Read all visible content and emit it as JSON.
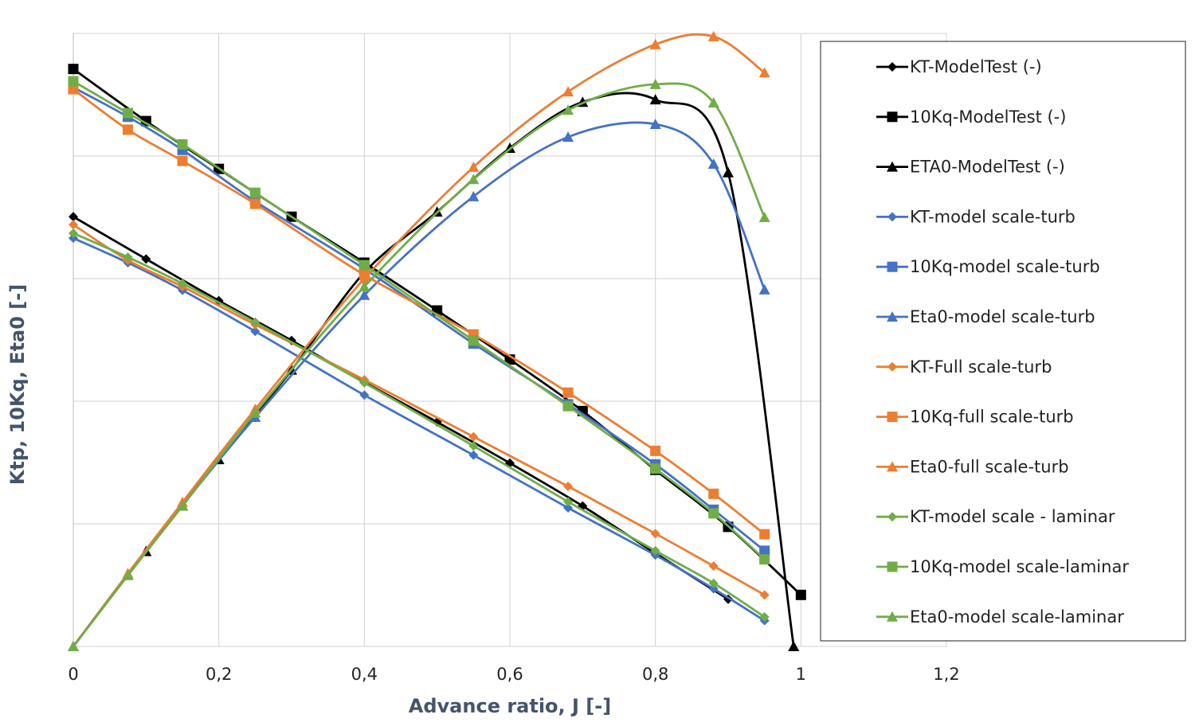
{
  "chart_data": {
    "type": "line",
    "title": "",
    "xlabel": "Advance ratio, J [-]",
    "ylabel": "Ktp, 10Kq, Eta0 [-]",
    "xlim": [
      0,
      1.2
    ],
    "xticks": [
      "0",
      "0,2",
      "0,4",
      "0,6",
      "0,8",
      "1",
      "1,2"
    ],
    "ylim": [
      0,
      1
    ],
    "yticks_labeled": false,
    "grid": true,
    "legend_position": "right",
    "series": [
      {
        "name": "KT-ModelTest  (-)",
        "color": "#000000",
        "marker": "diamond",
        "x": [
          0,
          0.1,
          0.2,
          0.3,
          0.4,
          0.5,
          0.6,
          0.7,
          0.8,
          0.9
        ],
        "y": [
          0.701,
          0.632,
          0.564,
          0.499,
          0.431,
          0.366,
          0.299,
          0.229,
          0.152,
          0.077
        ]
      },
      {
        "name": "10Kq-ModelTest (-)",
        "color": "#000000",
        "marker": "square",
        "x": [
          0,
          0.1,
          0.2,
          0.3,
          0.4,
          0.5,
          0.6,
          0.7,
          0.8,
          0.9,
          1.0
        ],
        "y": [
          0.942,
          0.857,
          0.779,
          0.701,
          0.626,
          0.548,
          0.468,
          0.384,
          0.288,
          0.195,
          0.084
        ]
      },
      {
        "name": "ETA0-ModelTest (-)",
        "color": "#000000",
        "marker": "triangle",
        "x": [
          0,
          0.1,
          0.2,
          0.3,
          0.4,
          0.5,
          0.6,
          0.7,
          0.8,
          0.9,
          0.99
        ],
        "y": [
          0,
          0.155,
          0.305,
          0.451,
          0.61,
          0.709,
          0.813,
          0.888,
          0.892,
          0.773,
          0
        ]
      },
      {
        "name": "KT-model scale-turb",
        "color": "#4472c4",
        "marker": "diamond",
        "x": [
          0,
          0.075,
          0.15,
          0.25,
          0.4,
          0.55,
          0.68,
          0.8,
          0.88,
          0.95
        ],
        "y": [
          0.666,
          0.626,
          0.581,
          0.514,
          0.41,
          0.312,
          0.226,
          0.149,
          0.094,
          0.042
        ]
      },
      {
        "name": "10Kq-model scale-turb",
        "color": "#4472c4",
        "marker": "square",
        "x": [
          0,
          0.075,
          0.15,
          0.25,
          0.4,
          0.55,
          0.68,
          0.8,
          0.88,
          0.95
        ],
        "y": [
          0.912,
          0.864,
          0.81,
          0.726,
          0.616,
          0.494,
          0.395,
          0.297,
          0.223,
          0.156
        ]
      },
      {
        "name": "Eta0-model scale-turb",
        "color": "#4472c4",
        "marker": "triangle",
        "x": [
          0,
          0.075,
          0.15,
          0.25,
          0.4,
          0.55,
          0.68,
          0.8,
          0.88,
          0.95
        ],
        "y": [
          0,
          0.116,
          0.23,
          0.374,
          0.573,
          0.734,
          0.831,
          0.852,
          0.787,
          0.582
        ]
      },
      {
        "name": "KT-Full scale-turb",
        "color": "#ed7d31",
        "marker": "diamond",
        "x": [
          0,
          0.075,
          0.15,
          0.25,
          0.4,
          0.55,
          0.68,
          0.8,
          0.88,
          0.95
        ],
        "y": [
          0.688,
          0.63,
          0.587,
          0.525,
          0.435,
          0.342,
          0.261,
          0.184,
          0.131,
          0.084
        ]
      },
      {
        "name": "10Kq-full scale-turb",
        "color": "#ed7d31",
        "marker": "square",
        "x": [
          0,
          0.075,
          0.15,
          0.25,
          0.4,
          0.55,
          0.68,
          0.8,
          0.88,
          0.95
        ],
        "y": [
          0.909,
          0.843,
          0.792,
          0.722,
          0.606,
          0.509,
          0.414,
          0.319,
          0.249,
          0.183
        ]
      },
      {
        "name": "Eta0-full scale-turb",
        "color": "#ed7d31",
        "marker": "triangle",
        "x": [
          0,
          0.075,
          0.15,
          0.25,
          0.4,
          0.55,
          0.68,
          0.8,
          0.88,
          0.95
        ],
        "y": [
          0,
          0.119,
          0.235,
          0.387,
          0.6,
          0.782,
          0.905,
          0.982,
          0.995,
          0.936
        ]
      },
      {
        "name": "KT-model scale - laminar",
        "color": "#70ad47",
        "marker": "diamond",
        "x": [
          0,
          0.075,
          0.15,
          0.25,
          0.4,
          0.55,
          0.68,
          0.8,
          0.88,
          0.95
        ],
        "y": [
          0.674,
          0.635,
          0.592,
          0.529,
          0.43,
          0.327,
          0.236,
          0.156,
          0.103,
          0.048
        ]
      },
      {
        "name": "10Kq-model scale-laminar",
        "color": "#70ad47",
        "marker": "square",
        "x": [
          0,
          0.075,
          0.15,
          0.25,
          0.4,
          0.55,
          0.68,
          0.8,
          0.88,
          0.95
        ],
        "y": [
          0.922,
          0.87,
          0.819,
          0.74,
          0.622,
          0.499,
          0.392,
          0.29,
          0.217,
          0.142
        ]
      },
      {
        "name": "Eta0-model scale-laminar",
        "color": "#70ad47",
        "marker": "triangle",
        "x": [
          0,
          0.075,
          0.15,
          0.25,
          0.4,
          0.55,
          0.68,
          0.8,
          0.88,
          0.95
        ],
        "y": [
          0,
          0.116,
          0.229,
          0.381,
          0.587,
          0.762,
          0.875,
          0.917,
          0.887,
          0.7
        ]
      }
    ]
  }
}
